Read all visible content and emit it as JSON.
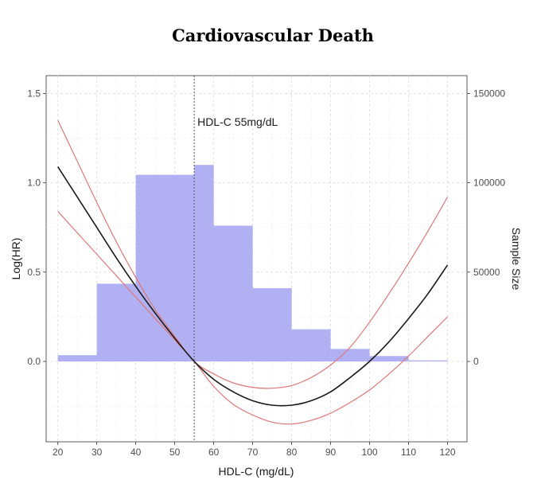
{
  "chart_data": {
    "type": "line",
    "title": "Cardiovascular Death",
    "xlabel": "HDL-C (mg/dL)",
    "ylabel": "Log(HR)",
    "y2label": "Sample Size",
    "xlim": [
      17,
      125
    ],
    "ylim": [
      -0.45,
      1.6
    ],
    "y2lim": [
      -45000,
      160000
    ],
    "x_ticks": [
      "20",
      "30",
      "40",
      "50",
      "60",
      "70",
      "80",
      "90",
      "100",
      "110",
      "120"
    ],
    "y_ticks": [
      "0.0",
      "0.5",
      "1.0",
      "1.5"
    ],
    "y2_ticks": [
      "0",
      "50000",
      "100000",
      "150000"
    ],
    "grid": true,
    "reference_line": {
      "x": 55,
      "label": "HDL-C 55mg/dL"
    },
    "histogram": {
      "name": "Sample Size",
      "color": "#a7a7f2",
      "bin_edges": [
        20,
        30,
        40,
        50,
        55,
        60,
        70,
        80,
        90,
        100,
        110,
        120
      ],
      "counts": [
        3500,
        43500,
        104500,
        104500,
        110000,
        76000,
        41000,
        18000,
        7000,
        3000,
        600
      ]
    },
    "series": [
      {
        "role": "estimate",
        "color": "#1a1a1a",
        "x": [
          20,
          25,
          30,
          35,
          40,
          45,
          50,
          55,
          60,
          65,
          70,
          75,
          80,
          85,
          90,
          95,
          100,
          105,
          110,
          115,
          120
        ],
        "y": [
          1.09,
          0.92,
          0.75,
          0.58,
          0.42,
          0.27,
          0.13,
          0.0,
          -0.1,
          -0.17,
          -0.22,
          -0.245,
          -0.245,
          -0.22,
          -0.17,
          -0.09,
          0.0,
          0.11,
          0.24,
          0.38,
          0.54
        ]
      },
      {
        "role": "upper-ci",
        "color": "#e07878",
        "x": [
          20,
          25,
          30,
          35,
          40,
          45,
          50,
          55,
          60,
          65,
          70,
          75,
          80,
          85,
          90,
          95,
          100,
          105,
          110,
          115,
          120
        ],
        "y": [
          1.35,
          1.12,
          0.89,
          0.67,
          0.47,
          0.29,
          0.14,
          0.0,
          -0.07,
          -0.12,
          -0.145,
          -0.15,
          -0.135,
          -0.09,
          -0.02,
          0.08,
          0.22,
          0.38,
          0.55,
          0.73,
          0.92
        ]
      },
      {
        "role": "lower-ci",
        "color": "#e07878",
        "x": [
          20,
          25,
          30,
          35,
          40,
          45,
          50,
          55,
          60,
          65,
          70,
          75,
          80,
          85,
          90,
          95,
          100,
          105,
          110,
          115,
          120
        ],
        "y": [
          0.84,
          0.72,
          0.6,
          0.48,
          0.36,
          0.24,
          0.12,
          0.0,
          -0.14,
          -0.24,
          -0.3,
          -0.34,
          -0.35,
          -0.33,
          -0.29,
          -0.23,
          -0.16,
          -0.07,
          0.03,
          0.14,
          0.25
        ]
      }
    ]
  }
}
